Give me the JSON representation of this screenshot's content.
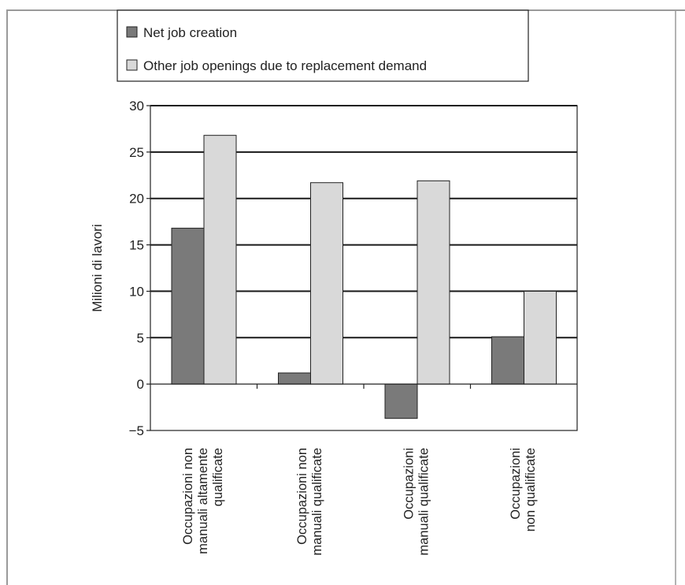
{
  "chart_data": {
    "type": "bar",
    "ylabel": "Milioni di lavori",
    "ylim": [
      -5,
      30
    ],
    "yticks": [
      30,
      25,
      20,
      15,
      10,
      5,
      0,
      -5
    ],
    "ytick_labels": [
      "30",
      "25",
      "20",
      "15",
      "10",
      "5",
      "0",
      "−5"
    ],
    "grid": true,
    "legend_position": "top",
    "categories": [
      [
        "Occupazioni non",
        "manuali altamente",
        "qualificate"
      ],
      [
        "Occupazioni non",
        "manuali qualificate"
      ],
      [
        "Occupazioni",
        "manuali qualificate"
      ],
      [
        "Occupazioni",
        "non qualificate"
      ]
    ],
    "series": [
      {
        "name": "Net job creation",
        "color": "#7a7a7a",
        "values": [
          16.8,
          1.2,
          -3.7,
          5.1
        ]
      },
      {
        "name": "Other job openings due to replacement demand",
        "color": "#d9d9d9",
        "values": [
          26.8,
          21.7,
          21.9,
          10.0
        ]
      }
    ]
  }
}
